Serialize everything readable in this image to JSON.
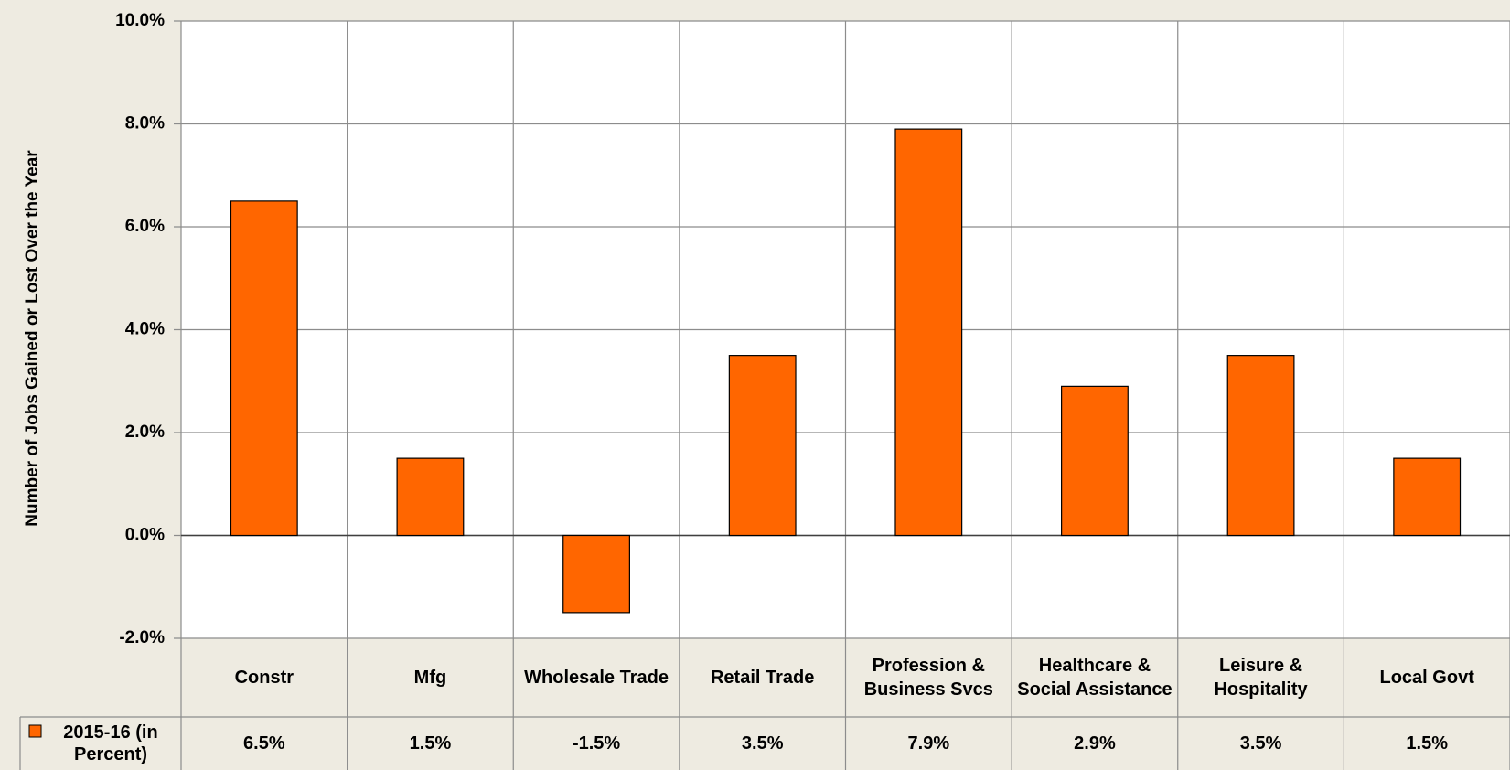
{
  "chart_data": {
    "type": "bar",
    "y_label": "Number of Jobs Gained or Lost Over the Year",
    "categories": [
      "Constr",
      "Mfg",
      "Wholesale Trade",
      "Retail Trade",
      "Profession & Business Svcs",
      "Healthcare & Social Assistance",
      "Leisure & Hospitality",
      "Local Govt"
    ],
    "series": [
      {
        "name": "2015-16 (in Percent)",
        "color": "#ff6600",
        "values": [
          6.5,
          1.5,
          -1.5,
          3.5,
          7.9,
          2.9,
          3.5,
          1.5
        ],
        "value_labels": [
          "6.5%",
          "1.5%",
          "-1.5%",
          "3.5%",
          "7.9%",
          "2.9%",
          "3.5%",
          "1.5%"
        ]
      }
    ],
    "ylim": [
      -2,
      10
    ],
    "yticks": [
      {
        "value": -2,
        "label": "-2.0%"
      },
      {
        "value": 0,
        "label": "0.0%"
      },
      {
        "value": 2,
        "label": "2.0%"
      },
      {
        "value": 4,
        "label": "4.0%"
      },
      {
        "value": 6,
        "label": "6.0%"
      },
      {
        "value": 8,
        "label": "8.0%"
      },
      {
        "value": 10,
        "label": "10.0%"
      }
    ],
    "grid": true,
    "data_table": true
  }
}
